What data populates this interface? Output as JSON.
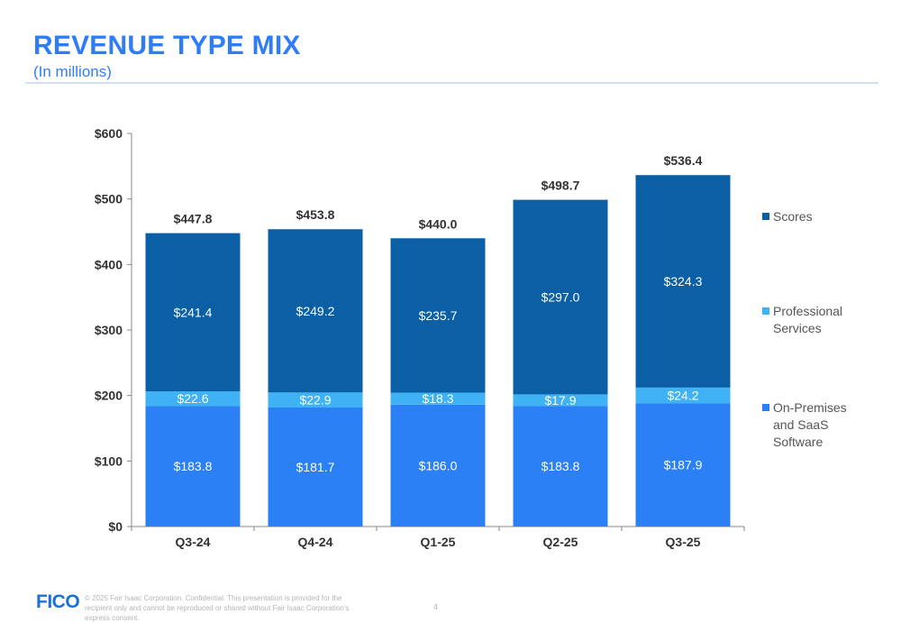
{
  "header": {
    "title": "REVENUE TYPE MIX",
    "subtitle": "(In millions)"
  },
  "chart_data": {
    "type": "bar",
    "stacked": true,
    "categories": [
      "Q3-24",
      "Q4-24",
      "Q1-25",
      "Q2-25",
      "Q3-25"
    ],
    "series": [
      {
        "name": "On-Premises and SaaS Software",
        "values": [
          183.8,
          181.7,
          186.0,
          183.8,
          187.9
        ],
        "labels": [
          "$183.8",
          "$181.7",
          "$186.0",
          "$183.8",
          "$187.9"
        ],
        "color": "#2b80f6"
      },
      {
        "name": "Professional Services",
        "values": [
          22.6,
          22.9,
          18.3,
          17.9,
          24.2
        ],
        "labels": [
          "$22.6",
          "$22.9",
          "$18.3",
          "$17.9",
          "$24.2"
        ],
        "color": "#3fb2f5"
      },
      {
        "name": "Scores",
        "values": [
          241.4,
          249.2,
          235.7,
          297.0,
          324.3
        ],
        "labels": [
          "$241.4",
          "$249.2",
          "$235.7",
          "$297.0",
          "$324.3"
        ],
        "color": "#0a5fa5"
      }
    ],
    "totals": [
      "$447.8",
      "$453.8",
      "$440.0",
      "$498.7",
      "$536.4"
    ],
    "ylim": [
      0,
      600
    ],
    "yticks": [
      0,
      100,
      200,
      300,
      400,
      500,
      600
    ],
    "ytick_labels": [
      "$0",
      "$100",
      "$200",
      "$300",
      "$400",
      "$500",
      "$600"
    ],
    "xlabel": "",
    "ylabel": "",
    "grid": false,
    "legend_position": "right"
  },
  "footer": {
    "logo": "FICO",
    "note": "© 2025 Fair Isaac Corporation. Confidential. This presentation is provided for the recipient only and cannot be reproduced or shared without Fair Isaac Corporation's express consent.",
    "page": "4"
  }
}
